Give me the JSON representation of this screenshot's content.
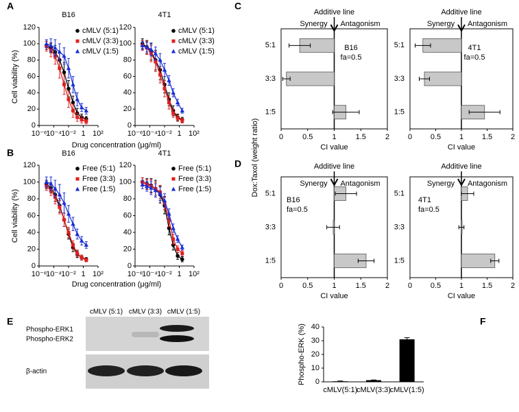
{
  "panel_labels": [
    "A",
    "B",
    "C",
    "D",
    "E",
    "F"
  ],
  "blot": {
    "lanes": [
      "cMLV (5:1)",
      "cMLV (3:3)",
      "cMLV (1:5)"
    ],
    "rows": [
      "Phospho-ERK1",
      "Phospho-ERK2",
      "β-actin"
    ]
  },
  "chart_data": [
    {
      "type": "line",
      "title": "B16",
      "ylabel": "Cell viability (%)",
      "xlabel": "Drug concentration (μg/ml)",
      "log_x": true,
      "x": [
        1e-05,
        4e-05,
        0.00015,
        0.0006,
        0.0025,
        0.01,
        0.04,
        0.15,
        0.6,
        2.5
      ],
      "xlim": [
        1e-06,
        100
      ],
      "xticks": [
        {
          "value": 1e-06,
          "label": "10⁻⁶"
        },
        {
          "value": 0.0001,
          "label": "10⁻⁴"
        },
        {
          "value": 0.01,
          "label": "10⁻²"
        },
        1,
        {
          "value": 100,
          "label": "10²"
        }
      ],
      "ylim": [
        0,
        120
      ],
      "yticks": [
        0,
        20,
        40,
        60,
        80,
        100,
        120
      ],
      "series": [
        {
          "name": "cMLV (5:1)",
          "color": "#000000",
          "marker": "circle",
          "values": [
            98,
            95,
            90,
            80,
            65,
            45,
            28,
            15,
            10,
            8
          ],
          "errors": [
            5,
            6,
            8,
            10,
            12,
            10,
            8,
            6,
            4,
            3
          ]
        },
        {
          "name": "cMLV (3:3)",
          "color": "#e02020",
          "marker": "square",
          "values": [
            97,
            92,
            85,
            70,
            50,
            32,
            18,
            10,
            7,
            5
          ],
          "errors": [
            6,
            8,
            10,
            12,
            12,
            10,
            8,
            5,
            4,
            3
          ]
        },
        {
          "name": "cMLV (1:5)",
          "color": "#1a2fd6",
          "marker": "triangle",
          "values": [
            100,
            98,
            95,
            90,
            85,
            70,
            50,
            32,
            22,
            18
          ],
          "errors": [
            5,
            8,
            10,
            10,
            10,
            12,
            10,
            8,
            5,
            4
          ]
        }
      ]
    },
    {
      "type": "line",
      "title": "4T1",
      "log_x": true,
      "x": [
        1e-05,
        4e-05,
        0.00015,
        0.0006,
        0.0025,
        0.01,
        0.04,
        0.15,
        0.6,
        2.5
      ],
      "xlim": [
        1e-06,
        100
      ],
      "xticks": [
        {
          "value": 1e-06,
          "label": "10⁻⁶"
        },
        {
          "value": 0.0001,
          "label": "10⁻⁴"
        },
        {
          "value": 0.01,
          "label": "10⁻²"
        },
        1,
        {
          "value": 100,
          "label": "10²"
        }
      ],
      "ylim": [
        0,
        120
      ],
      "yticks": [
        0,
        20,
        40,
        60,
        80,
        100,
        120
      ],
      "series": [
        {
          "name": "cMLV (5:1)",
          "color": "#000000",
          "marker": "circle",
          "values": [
            100,
            96,
            90,
            80,
            68,
            50,
            32,
            18,
            10,
            7
          ],
          "errors": [
            6,
            8,
            10,
            12,
            12,
            10,
            8,
            6,
            4,
            3
          ]
        },
        {
          "name": "cMLV (3:3)",
          "color": "#e02020",
          "marker": "square",
          "values": [
            98,
            95,
            88,
            78,
            62,
            45,
            28,
            15,
            9,
            6
          ],
          "errors": [
            6,
            8,
            10,
            12,
            10,
            10,
            8,
            5,
            4,
            3
          ]
        },
        {
          "name": "cMLV (1:5)",
          "color": "#1a2fd6",
          "marker": "triangle",
          "values": [
            98,
            96,
            93,
            88,
            80,
            68,
            55,
            40,
            28,
            18
          ],
          "errors": [
            5,
            6,
            8,
            8,
            8,
            8,
            6,
            5,
            4,
            3
          ]
        }
      ]
    },
    {
      "type": "line",
      "title": "B16",
      "ylabel": "Cell viability (%)",
      "xlabel": "Drug concentration (μg/ml)",
      "log_x": true,
      "x": [
        1e-05,
        4e-05,
        0.00015,
        0.0006,
        0.0025,
        0.01,
        0.04,
        0.15,
        0.6,
        2.5
      ],
      "xlim": [
        1e-06,
        100
      ],
      "xticks": [
        {
          "value": 1e-06,
          "label": "10⁻⁶"
        },
        {
          "value": 0.0001,
          "label": "10⁻⁴"
        },
        {
          "value": 0.01,
          "label": "10⁻²"
        },
        1,
        {
          "value": 100,
          "label": "10²"
        }
      ],
      "ylim": [
        0,
        120
      ],
      "yticks": [
        0,
        20,
        40,
        60,
        80,
        100,
        120
      ],
      "series": [
        {
          "name": "Free (5:1)",
          "color": "#000000",
          "marker": "circle",
          "values": [
            97,
            93,
            85,
            72,
            55,
            38,
            22,
            14,
            10,
            8
          ],
          "errors": [
            5,
            6,
            8,
            8,
            8,
            6,
            5,
            4,
            3,
            2
          ]
        },
        {
          "name": "Free (3:3)",
          "color": "#e02020",
          "marker": "square",
          "values": [
            95,
            90,
            82,
            70,
            55,
            40,
            25,
            15,
            10,
            7
          ],
          "errors": [
            5,
            6,
            8,
            8,
            8,
            6,
            5,
            4,
            3,
            2
          ]
        },
        {
          "name": "Free (1:5)",
          "color": "#1a2fd6",
          "marker": "triangle",
          "values": [
            100,
            98,
            92,
            85,
            75,
            62,
            50,
            38,
            30,
            25
          ],
          "errors": [
            6,
            8,
            10,
            12,
            12,
            10,
            8,
            6,
            5,
            4
          ]
        }
      ]
    },
    {
      "type": "line",
      "title": "4T1",
      "log_x": true,
      "x": [
        1e-05,
        4e-05,
        0.00015,
        0.0006,
        0.0025,
        0.01,
        0.04,
        0.15,
        0.6,
        2.5
      ],
      "xlim": [
        1e-06,
        100
      ],
      "xticks": [
        {
          "value": 1e-06,
          "label": "10⁻⁶"
        },
        {
          "value": 0.0001,
          "label": "10⁻⁴"
        },
        {
          "value": 0.01,
          "label": "10⁻²"
        },
        1,
        {
          "value": 100,
          "label": "10²"
        }
      ],
      "ylim": [
        0,
        120
      ],
      "yticks": [
        0,
        20,
        40,
        60,
        80,
        100,
        120
      ],
      "series": [
        {
          "name": "Free (5:1)",
          "color": "#000000",
          "marker": "circle",
          "values": [
            100,
            98,
            96,
            92,
            85,
            72,
            45,
            25,
            12,
            8
          ],
          "errors": [
            5,
            6,
            8,
            10,
            10,
            10,
            8,
            6,
            4,
            3
          ]
        },
        {
          "name": "Free (3:3)",
          "color": "#e02020",
          "marker": "square",
          "values": [
            100,
            97,
            95,
            92,
            88,
            75,
            55,
            32,
            20,
            15
          ],
          "errors": [
            5,
            6,
            8,
            8,
            8,
            8,
            8,
            6,
            4,
            3
          ]
        },
        {
          "name": "Free (1:5)",
          "color": "#1a2fd6",
          "marker": "triangle",
          "values": [
            97,
            95,
            93,
            90,
            86,
            78,
            62,
            45,
            32,
            22
          ],
          "errors": [
            5,
            6,
            8,
            8,
            8,
            8,
            6,
            5,
            4,
            3
          ]
        }
      ]
    },
    {
      "type": "hbar",
      "categories": [
        "5:1",
        "3:3",
        "1:5"
      ],
      "values": [
        0.35,
        0.1,
        1.22
      ],
      "errors": [
        0.2,
        0.07,
        0.25
      ],
      "color": "#c8c8c8",
      "xlim": [
        0,
        2
      ],
      "xticks": [
        0,
        0.5,
        1,
        1.5,
        2
      ],
      "reference_line": 1,
      "xlabel": "CI value",
      "ylabel": "Dox:Taxol (weight ratio)",
      "reference_label": "Additive line",
      "left_label": "Synergy",
      "right_label": "Antagonism",
      "annotation": [
        "B16",
        "fa=0.5"
      ]
    },
    {
      "type": "hbar",
      "categories": [
        "5:1",
        "3:3",
        "1:5"
      ],
      "values": [
        0.25,
        0.28,
        1.45
      ],
      "errors": [
        0.15,
        0.1,
        0.3
      ],
      "color": "#c8c8c8",
      "xlim": [
        0,
        2
      ],
      "xticks": [
        0,
        0.5,
        1,
        1.5,
        2
      ],
      "reference_line": 1,
      "xlabel": "CI value",
      "reference_label": "Additive line",
      "left_label": "Synergy",
      "right_label": "Antagonism",
      "annotation": [
        "4T1",
        "fa=0.5"
      ]
    },
    {
      "type": "hbar",
      "categories": [
        "5:1",
        "3:3",
        "1:5"
      ],
      "values": [
        1.22,
        0.98,
        1.6
      ],
      "errors": [
        0.2,
        0.12,
        0.15
      ],
      "color": "#c8c8c8",
      "xlim": [
        0,
        2
      ],
      "xticks": [
        0,
        0.5,
        1,
        1.5,
        2
      ],
      "reference_line": 1,
      "xlabel": "CI value",
      "ylabel": "Dox:Taxol (weight ratio)",
      "reference_label": "Additive line",
      "left_label": "Synergy",
      "right_label": "Antagonism",
      "annotation": [
        "B16",
        "fa=0.5"
      ]
    },
    {
      "type": "hbar",
      "categories": [
        "5:1",
        "3:3",
        "1:5"
      ],
      "values": [
        1.12,
        1.0,
        1.65
      ],
      "errors": [
        0.12,
        0.05,
        0.08
      ],
      "color": "#c8c8c8",
      "xlim": [
        0,
        2
      ],
      "xticks": [
        0,
        0.5,
        1,
        1.5,
        2
      ],
      "reference_line": 1,
      "xlabel": "CI value",
      "reference_label": "Additive line",
      "left_label": "Synergy",
      "right_label": "Antagonism",
      "annotation": [
        "4T1",
        "fa=0.5"
      ]
    },
    {
      "type": "bar",
      "categories": [
        "cMLV(5:1)",
        "cMLV(3:3)",
        "cMLV(1:5)"
      ],
      "values": [
        0.4,
        1.2,
        31
      ],
      "errors": [
        0.2,
        0.2,
        1.2
      ],
      "color": "#000000",
      "ylim": [
        0,
        40
      ],
      "yticks": [
        0,
        10,
        20,
        30,
        40
      ],
      "ylabel": "Phospho-ERK (%)"
    }
  ]
}
